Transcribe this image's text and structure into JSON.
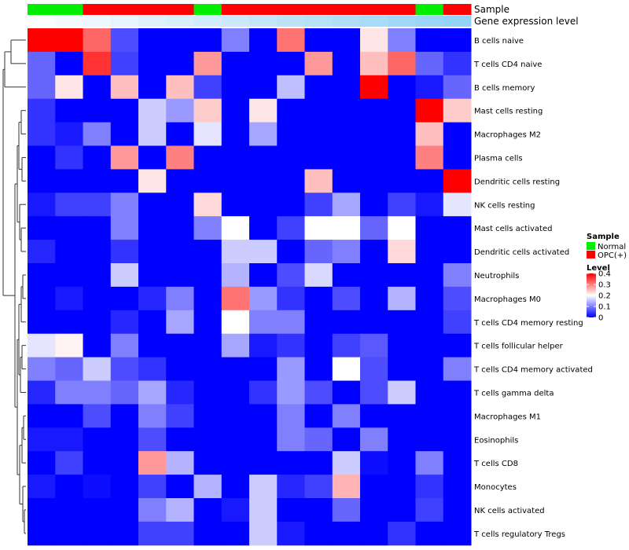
{
  "chart_data": {
    "type": "heatmap",
    "annotation_tracks": [
      {
        "name": "Sample"
      },
      {
        "name": "Gene expression level"
      }
    ],
    "sample_annotation": [
      "Normal",
      "Normal",
      "OPC(+)",
      "OPC(+)",
      "OPC(+)",
      "OPC(+)",
      "Normal",
      "OPC(+)",
      "OPC(+)",
      "OPC(+)",
      "OPC(+)",
      "OPC(+)",
      "OPC(+)",
      "OPC(+)",
      "Normal",
      "OPC(+)"
    ],
    "expression_annotation": [
      0.02,
      0.06,
      0.1,
      0.14,
      0.18,
      0.22,
      0.26,
      0.3,
      0.34,
      0.38,
      0.42,
      0.46,
      0.5,
      0.54,
      0.58,
      0.62
    ],
    "rows": [
      "B cells naive",
      "T cells CD4 naive",
      "B cells memory",
      "Mast cells resting",
      "Macrophages M2",
      "Plasma cells",
      "Dendritic cells resting",
      "NK cells resting",
      "Mast cells activated",
      "Dendritic cells activated",
      "Neutrophils",
      "Macrophages M0",
      "T cells CD4 memory resting",
      "T cells follicular helper",
      "T cells CD4 memory activated",
      "T cells gamma delta",
      "Macrophages M1",
      "Eosinophils",
      "T cells CD8",
      "Monocytes",
      "NK cells activated",
      "T cells regulatory  Tregs"
    ],
    "values": [
      [
        0.4,
        0.4,
        0.32,
        0.06,
        0,
        0,
        0,
        0.1,
        0,
        0.31,
        0,
        0,
        0.22,
        0.1,
        0,
        0
      ],
      [
        0.08,
        0,
        0.36,
        0.05,
        0,
        0,
        0.28,
        0,
        0,
        0,
        0.28,
        0,
        0.25,
        0.32,
        0.08,
        0.04
      ],
      [
        0.08,
        0.22,
        0,
        0.25,
        0,
        0.25,
        0.05,
        0,
        0,
        0.15,
        0,
        0,
        0.4,
        0,
        0.02,
        0.08
      ],
      [
        0.04,
        0,
        0,
        0,
        0.16,
        0.12,
        0.24,
        0,
        0.22,
        0,
        0,
        0,
        0,
        0,
        0.4,
        0.24
      ],
      [
        0.04,
        0.02,
        0.1,
        0,
        0.16,
        0,
        0.18,
        0,
        0.13,
        0,
        0,
        0,
        0,
        0,
        0.25,
        0
      ],
      [
        0,
        0.04,
        0,
        0.28,
        0,
        0.3,
        0,
        0,
        0,
        0,
        0,
        0,
        0,
        0,
        0.3,
        0
      ],
      [
        0,
        0,
        0,
        0,
        0.22,
        0,
        0,
        0,
        0,
        0,
        0.25,
        0,
        0,
        0,
        0,
        0.4
      ],
      [
        0.02,
        0.05,
        0.05,
        0.1,
        0,
        0,
        0.23,
        0,
        0,
        0,
        0.05,
        0.13,
        0,
        0.05,
        0.02,
        0.18
      ],
      [
        0,
        0,
        0,
        0.1,
        0,
        0,
        0.1,
        0.2,
        0,
        0.05,
        0.2,
        0.2,
        0.08,
        0.2,
        0,
        0
      ],
      [
        0.03,
        0,
        0,
        0.04,
        0,
        0,
        0,
        0.16,
        0.16,
        0,
        0.08,
        0.1,
        0,
        0.23,
        0,
        0
      ],
      [
        0,
        0,
        0,
        0.16,
        0,
        0,
        0,
        0.14,
        0,
        0.06,
        0.17,
        0,
        0,
        0,
        0,
        0.1
      ],
      [
        0,
        0.02,
        0,
        0,
        0.03,
        0.1,
        0,
        0.31,
        0.12,
        0.04,
        0,
        0.06,
        0,
        0.14,
        0,
        0.06
      ],
      [
        0,
        0,
        0,
        0.03,
        0,
        0.13,
        0,
        0.2,
        0.1,
        0.1,
        0,
        0,
        0,
        0,
        0,
        0.05
      ],
      [
        0.18,
        0.21,
        0,
        0.1,
        0,
        0,
        0,
        0.13,
        0.02,
        0.04,
        0,
        0.05,
        0.07,
        0,
        0,
        0
      ],
      [
        0.1,
        0.08,
        0.16,
        0.06,
        0.04,
        0,
        0,
        0,
        0,
        0.12,
        0,
        0.2,
        0.06,
        0,
        0,
        0.1
      ],
      [
        0.03,
        0.1,
        0.1,
        0.08,
        0.13,
        0.03,
        0,
        0,
        0.04,
        0.12,
        0.06,
        0,
        0.06,
        0.16,
        0,
        0
      ],
      [
        0,
        0,
        0.06,
        0,
        0.1,
        0.05,
        0,
        0,
        0,
        0.1,
        0,
        0.1,
        0,
        0,
        0,
        0
      ],
      [
        0.02,
        0.02,
        0,
        0,
        0.06,
        0,
        0,
        0,
        0,
        0.1,
        0.08,
        0,
        0.1,
        0,
        0,
        0
      ],
      [
        0,
        0.05,
        0,
        0,
        0.28,
        0.14,
        0,
        0,
        0,
        0,
        0,
        0.16,
        0.01,
        0,
        0.1,
        0
      ],
      [
        0.02,
        0,
        0.01,
        0,
        0.05,
        0,
        0.14,
        0,
        0.16,
        0.03,
        0.05,
        0.26,
        0,
        0,
        0.04,
        0
      ],
      [
        0,
        0,
        0,
        0,
        0.1,
        0.14,
        0,
        0.02,
        0.16,
        0,
        0,
        0.08,
        0,
        0,
        0.05,
        0
      ],
      [
        0,
        0,
        0,
        0,
        0.05,
        0.05,
        0,
        0,
        0.16,
        0.02,
        0,
        0,
        0,
        0.04,
        0,
        0
      ]
    ],
    "scale": {
      "min": 0,
      "max": 0.4,
      "low_color": "#0000ff",
      "mid_color": "#ffffff",
      "high_color": "#ff0000"
    },
    "legend": {
      "sample_title": "Sample",
      "sample_items": [
        {
          "label": "Normal",
          "color": "#00ee00"
        },
        {
          "label": "OPC(+)",
          "color": "#ff0000"
        }
      ],
      "level_title": "Level",
      "level_ticks": [
        "0.4",
        "0.3",
        "0.2",
        "0.1",
        "0"
      ],
      "level_tick_values": [
        0.4,
        0.3,
        0.2,
        0.1,
        0
      ]
    },
    "annotation_colors": {
      "Normal": "#00ee00",
      "OPC(+)": "#ff0000",
      "expr_low": "#ffffff",
      "expr_high": "#4fb8f0"
    }
  }
}
